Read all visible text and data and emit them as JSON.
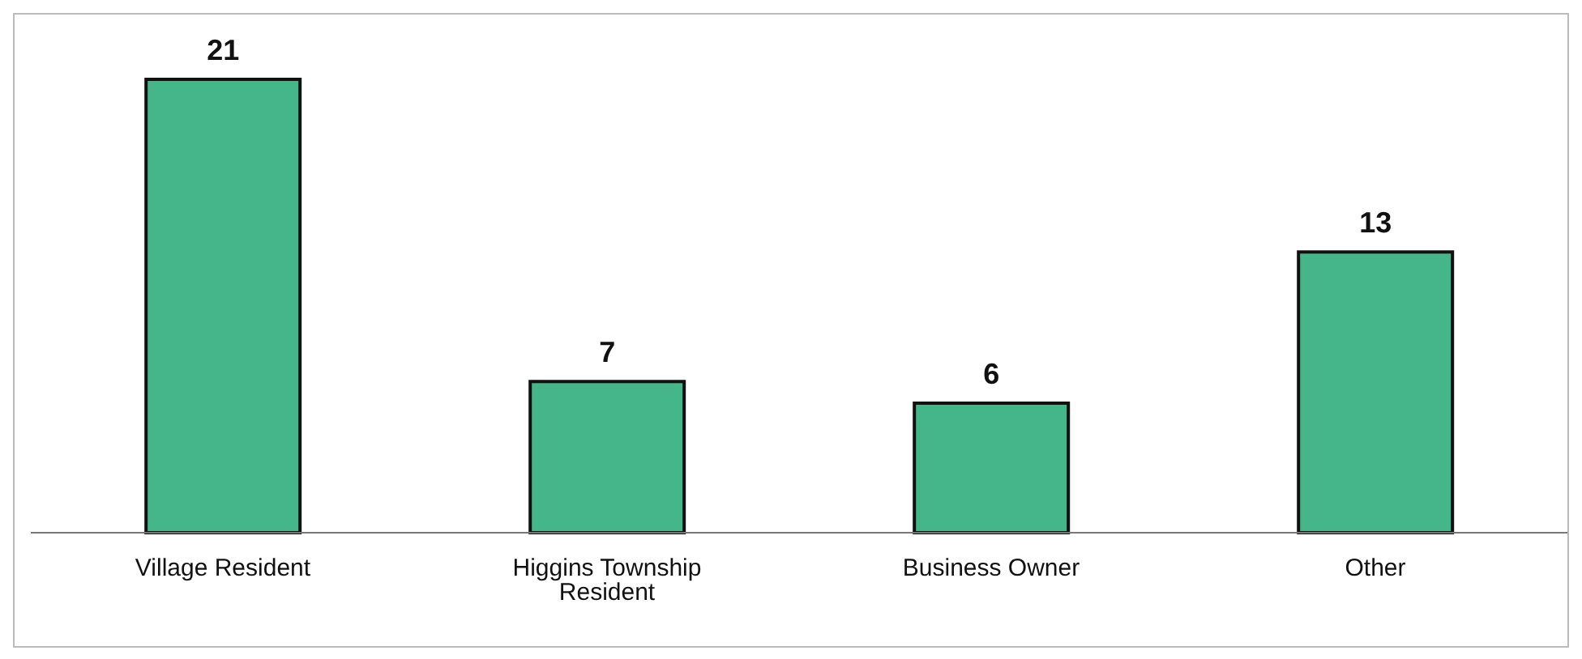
{
  "chart_data": {
    "type": "bar",
    "categories": [
      "Village Resident",
      "Higgins Township Resident",
      "Business Owner",
      "Other"
    ],
    "values": [
      21,
      7,
      6,
      13
    ],
    "color": "#45b58a",
    "data_labels": true
  }
}
